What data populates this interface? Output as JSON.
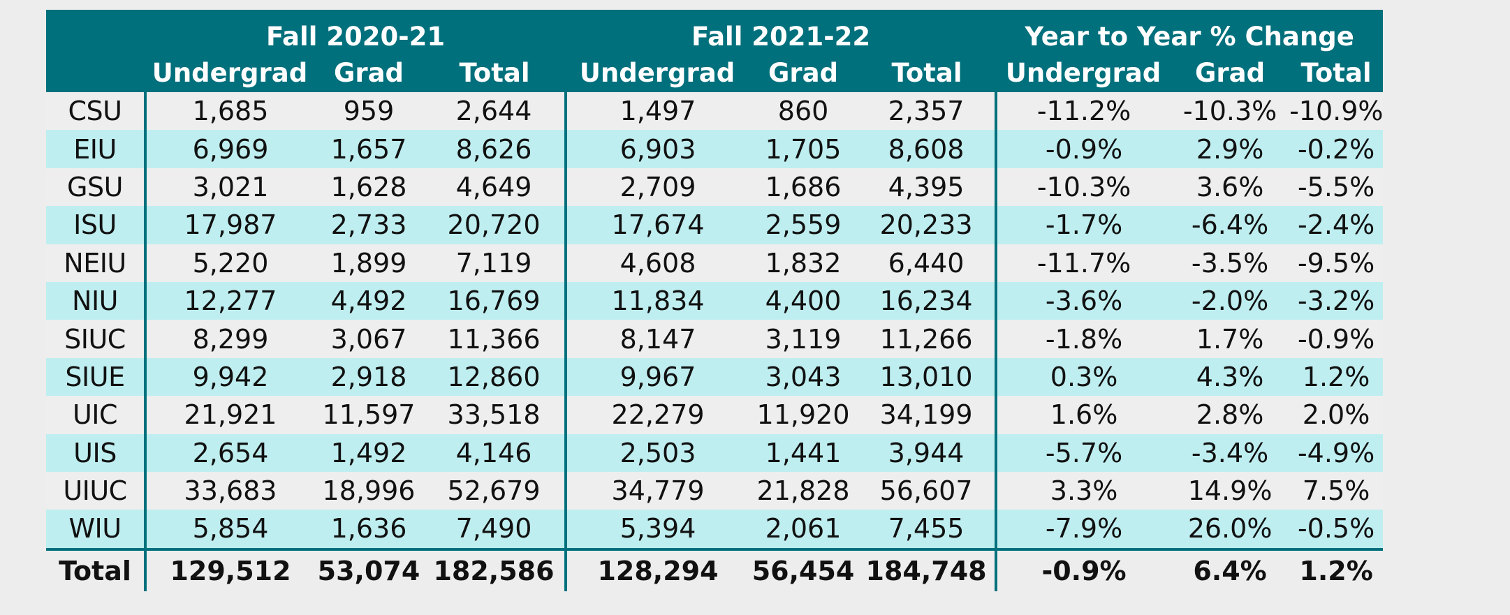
{
  "table": {
    "groups": [
      "Fall 2020-21",
      "Fall 2021-22",
      "Year to Year % Change"
    ],
    "subheaders": [
      "Undergrad",
      "Grad",
      "Total",
      "Undergrad",
      "Grad",
      "Total",
      "Undergrad",
      "Grad",
      "Total"
    ],
    "rows": [
      [
        "CSU",
        "1,685",
        "959",
        "2,644",
        "1,497",
        "860",
        "2,357",
        "-11.2%",
        "-10.3%",
        "-10.9%"
      ],
      [
        "EIU",
        "6,969",
        "1,657",
        "8,626",
        "6,903",
        "1,705",
        "8,608",
        "-0.9%",
        "2.9%",
        "-0.2%"
      ],
      [
        "GSU",
        "3,021",
        "1,628",
        "4,649",
        "2,709",
        "1,686",
        "4,395",
        "-10.3%",
        "3.6%",
        "-5.5%"
      ],
      [
        "ISU",
        "17,987",
        "2,733",
        "20,720",
        "17,674",
        "2,559",
        "20,233",
        "-1.7%",
        "-6.4%",
        "-2.4%"
      ],
      [
        "NEIU",
        "5,220",
        "1,899",
        "7,119",
        "4,608",
        "1,832",
        "6,440",
        "-11.7%",
        "-3.5%",
        "-9.5%"
      ],
      [
        "NIU",
        "12,277",
        "4,492",
        "16,769",
        "11,834",
        "4,400",
        "16,234",
        "-3.6%",
        "-2.0%",
        "-3.2%"
      ],
      [
        "SIUC",
        "8,299",
        "3,067",
        "11,366",
        "8,147",
        "3,119",
        "11,266",
        "-1.8%",
        "1.7%",
        "-0.9%"
      ],
      [
        "SIUE",
        "9,942",
        "2,918",
        "12,860",
        "9,967",
        "3,043",
        "13,010",
        "0.3%",
        "4.3%",
        "1.2%"
      ],
      [
        "UIC",
        "21,921",
        "11,597",
        "33,518",
        "22,279",
        "11,920",
        "34,199",
        "1.6%",
        "2.8%",
        "2.0%"
      ],
      [
        "UIS",
        "2,654",
        "1,492",
        "4,146",
        "2,503",
        "1,441",
        "3,944",
        "-5.7%",
        "-3.4%",
        "-4.9%"
      ],
      [
        "UIUC",
        "33,683",
        "18,996",
        "52,679",
        "34,779",
        "21,828",
        "56,607",
        "3.3%",
        "14.9%",
        "7.5%"
      ],
      [
        "WIU",
        "5,854",
        "1,636",
        "7,490",
        "5,394",
        "2,061",
        "7,455",
        "-7.9%",
        "26.0%",
        "-0.5%"
      ]
    ],
    "total": [
      "Total",
      "129,512",
      "53,074",
      "182,586",
      "128,294",
      "56,454",
      "184,748",
      "-0.9%",
      "6.4%",
      "1.2%"
    ]
  },
  "colors": {
    "header_bg": "#00707c",
    "band_light": "#eeeeee",
    "band_teal": "#bfeef0"
  }
}
